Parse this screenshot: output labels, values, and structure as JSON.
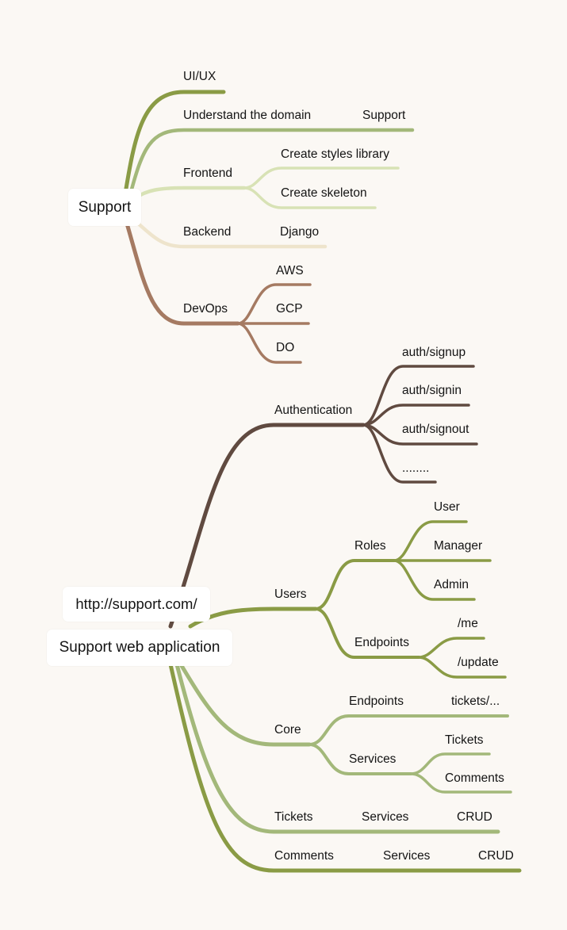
{
  "colors": {
    "background": "#fbf8f4",
    "olive": "#8a9b45",
    "sage": "#a3b87a",
    "pale_green": "#d8e2b5",
    "cream": "#eee4cc",
    "terracotta": "#a57a62",
    "dark_brown": "#604a40",
    "node_fill": "#ffffff",
    "text": "#141414"
  },
  "map1": {
    "root": "Support",
    "nodes": {
      "uiux": "UI/UX",
      "domain": "Understand the domain",
      "domain_support": "Support",
      "frontend": "Frontend",
      "styles": "Create styles library",
      "skeleton": "Create skeleton",
      "backend": "Backend",
      "django": "Django",
      "devops": "DevOps",
      "aws": "AWS",
      "gcp": "GCP",
      "do": "DO"
    }
  },
  "map2": {
    "url": "http://support.com/",
    "root": "Support web application",
    "nodes": {
      "auth": "Authentication",
      "signup": "auth/signup",
      "signin": "auth/signin",
      "signout": "auth/signout",
      "auth_more": "........",
      "users": "Users",
      "roles": "Roles",
      "user": "User",
      "manager": "Manager",
      "admin": "Admin",
      "u_endpoints": "Endpoints",
      "me": "/me",
      "update": "/update",
      "core": "Core",
      "c_endpoints": "Endpoints",
      "tickets_path": "tickets/...",
      "c_services": "Services",
      "c_tickets": "Tickets",
      "c_comments": "Comments",
      "tickets": "Tickets",
      "t_services": "Services",
      "t_crud": "CRUD",
      "comments": "Comments",
      "cm_services": "Services",
      "cm_crud": "CRUD"
    }
  }
}
